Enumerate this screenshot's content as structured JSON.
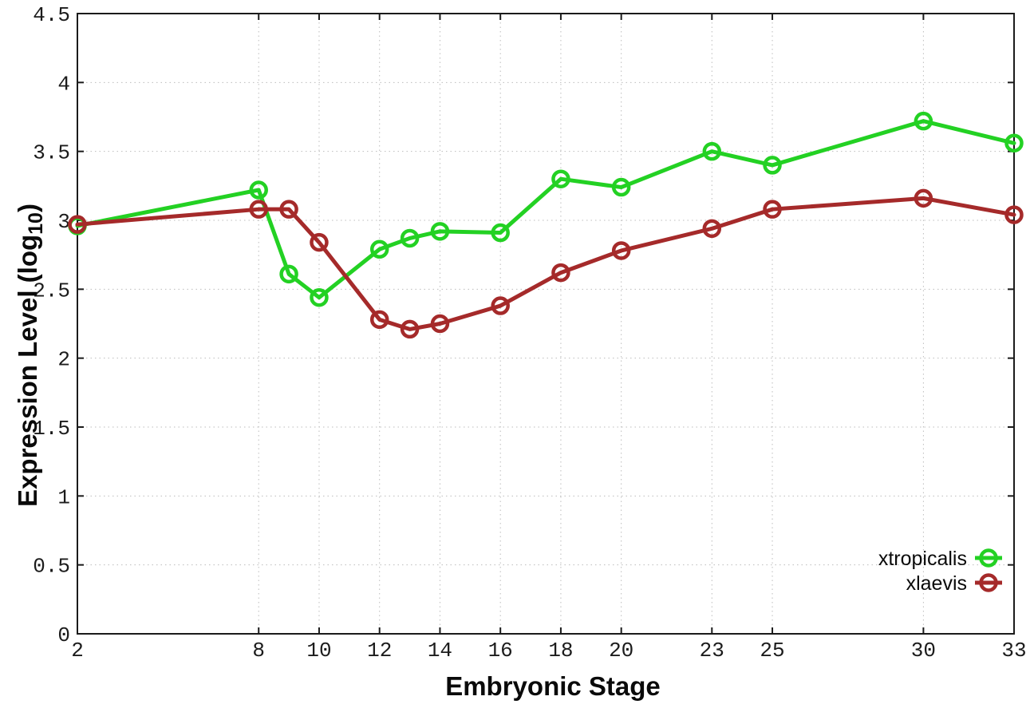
{
  "chart_data": {
    "type": "line",
    "title": "",
    "xlabel": "Embryonic Stage",
    "ylabel": "Expression Level (log10)",
    "ylabel_parts": {
      "main": "Expression Level (log",
      "sub": "10",
      "close": ")"
    },
    "x": [
      2,
      8,
      9,
      10,
      12,
      13,
      14,
      16,
      18,
      20,
      23,
      25,
      30,
      33
    ],
    "series": [
      {
        "name": "xtropicalis",
        "color": "#23d123",
        "values": [
          2.96,
          3.22,
          2.61,
          2.44,
          2.79,
          2.87,
          2.92,
          2.91,
          3.3,
          3.24,
          3.5,
          3.4,
          3.72,
          3.56
        ]
      },
      {
        "name": "xlaevis",
        "color": "#a52a2a",
        "values": [
          2.97,
          3.08,
          3.08,
          2.84,
          2.28,
          2.21,
          2.25,
          2.38,
          2.62,
          2.78,
          2.94,
          3.08,
          3.16,
          3.04
        ]
      }
    ],
    "xlim": [
      2,
      33
    ],
    "ylim": [
      0,
      4.5
    ],
    "xticks": {
      "values": [
        2,
        8,
        10,
        12,
        14,
        16,
        18,
        20,
        23,
        25,
        30,
        33
      ],
      "labels": [
        "2",
        "8",
        "10",
        "12",
        "14",
        "16",
        "18",
        "20",
        "23",
        "25",
        "30",
        "33"
      ]
    },
    "yticks": {
      "values": [
        0,
        0.5,
        1,
        1.5,
        2,
        2.5,
        3,
        3.5,
        4,
        4.5
      ],
      "labels": [
        "0",
        "0.5",
        "1",
        "1.5",
        "2",
        "2.5",
        "3",
        "3.5",
        "4",
        "4.5"
      ]
    },
    "grid": true,
    "legend_position": "inside-bottom-right",
    "marker_style": "open-circle"
  }
}
